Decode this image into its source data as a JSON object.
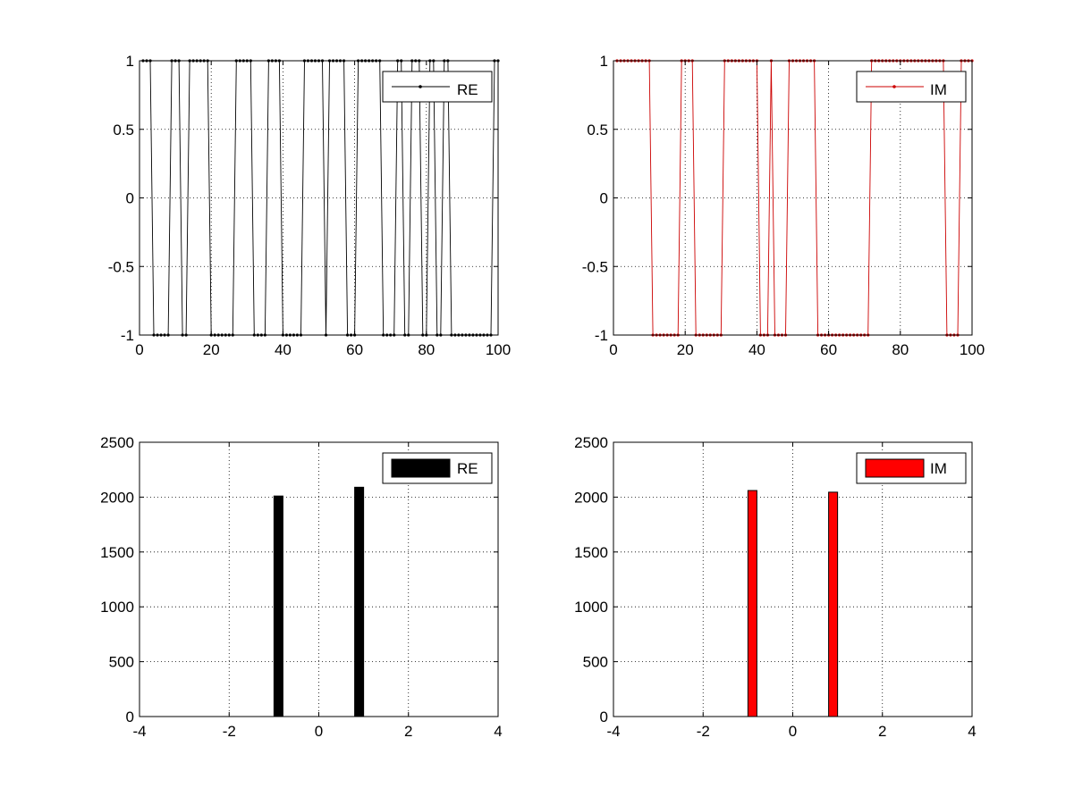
{
  "chart_data": [
    {
      "type": "line",
      "title": "",
      "xlabel": "",
      "ylabel": "",
      "xlim": [
        0,
        100
      ],
      "ylim": [
        -1,
        1
      ],
      "xticks": [
        0,
        20,
        40,
        60,
        80,
        100
      ],
      "yticks": [
        -1,
        -0.5,
        0,
        0.5,
        1
      ],
      "xtick_labels": [
        "0",
        "20",
        "40",
        "60",
        "80",
        "100"
      ],
      "ytick_labels": [
        "-1",
        "-0.5",
        "0",
        "0.5",
        "1"
      ],
      "grid": true,
      "legend": {
        "position": "top-right",
        "entries": [
          "RE"
        ]
      },
      "series": [
        {
          "name": "RE",
          "color": "#000000",
          "x": [
            1,
            2,
            3,
            4,
            5,
            6,
            7,
            8,
            9,
            10,
            11,
            12,
            13,
            14,
            15,
            16,
            17,
            18,
            19,
            20,
            21,
            22,
            23,
            24,
            25,
            26,
            27,
            28,
            29,
            30,
            31,
            32,
            33,
            34,
            35,
            36,
            37,
            38,
            39,
            40,
            41,
            42,
            43,
            44,
            45,
            46,
            47,
            48,
            49,
            50,
            51,
            52,
            53,
            54,
            55,
            56,
            57,
            58,
            59,
            60,
            61,
            62,
            63,
            64,
            65,
            66,
            67,
            68,
            69,
            70,
            71,
            72,
            73,
            74,
            75,
            76,
            77,
            78,
            79,
            80,
            81,
            82,
            83,
            84,
            85,
            86,
            87,
            88,
            89,
            90,
            91,
            92,
            93,
            94,
            95,
            96,
            97,
            98,
            99,
            100
          ],
          "y": [
            1,
            1,
            1,
            -1,
            -1,
            -1,
            -1,
            -1,
            1,
            1,
            1,
            -1,
            -1,
            1,
            1,
            1,
            1,
            1,
            1,
            -1,
            -1,
            -1,
            -1,
            -1,
            -1,
            -1,
            1,
            1,
            1,
            1,
            1,
            -1,
            -1,
            -1,
            -1,
            1,
            1,
            1,
            1,
            -1,
            -1,
            -1,
            -1,
            -1,
            -1,
            1,
            1,
            1,
            1,
            1,
            1,
            -1,
            1,
            1,
            1,
            1,
            1,
            -1,
            -1,
            -1,
            1,
            1,
            1,
            1,
            1,
            1,
            1,
            -1,
            -1,
            -1,
            -1,
            1,
            1,
            -1,
            -1,
            1,
            1,
            1,
            -1,
            -1,
            1,
            1,
            -1,
            -1,
            1,
            1,
            -1,
            -1,
            -1,
            -1,
            -1,
            -1,
            -1,
            -1,
            -1,
            -1,
            -1,
            -1,
            1,
            1
          ]
        }
      ]
    },
    {
      "type": "line",
      "title": "",
      "xlabel": "",
      "ylabel": "",
      "xlim": [
        0,
        100
      ],
      "ylim": [
        -1,
        1
      ],
      "xticks": [
        0,
        20,
        40,
        60,
        80,
        100
      ],
      "yticks": [
        -1,
        -0.5,
        0,
        0.5,
        1
      ],
      "xtick_labels": [
        "0",
        "20",
        "40",
        "60",
        "80",
        "100"
      ],
      "ytick_labels": [
        "-1",
        "-0.5",
        "0",
        "0.5",
        "1"
      ],
      "grid": true,
      "legend": {
        "position": "top-right",
        "entries": [
          "IM"
        ]
      },
      "series": [
        {
          "name": "IM",
          "color": "#cc0000",
          "x": [
            1,
            2,
            3,
            4,
            5,
            6,
            7,
            8,
            9,
            10,
            11,
            12,
            13,
            14,
            15,
            16,
            17,
            18,
            19,
            20,
            21,
            22,
            23,
            24,
            25,
            26,
            27,
            28,
            29,
            30,
            31,
            32,
            33,
            34,
            35,
            36,
            37,
            38,
            39,
            40,
            41,
            42,
            43,
            44,
            45,
            46,
            47,
            48,
            49,
            50,
            51,
            52,
            53,
            54,
            55,
            56,
            57,
            58,
            59,
            60,
            61,
            62,
            63,
            64,
            65,
            66,
            67,
            68,
            69,
            70,
            71,
            72,
            73,
            74,
            75,
            76,
            77,
            78,
            79,
            80,
            81,
            82,
            83,
            84,
            85,
            86,
            87,
            88,
            89,
            90,
            91,
            92,
            93,
            94,
            95,
            96,
            97,
            98,
            99,
            100
          ],
          "y": [
            1,
            1,
            1,
            1,
            1,
            1,
            1,
            1,
            1,
            1,
            -1,
            -1,
            -1,
            -1,
            -1,
            -1,
            -1,
            -1,
            1,
            1,
            1,
            1,
            -1,
            -1,
            -1,
            -1,
            -1,
            -1,
            -1,
            -1,
            1,
            1,
            1,
            1,
            1,
            1,
            1,
            1,
            1,
            1,
            -1,
            -1,
            -1,
            1,
            -1,
            -1,
            -1,
            -1,
            1,
            1,
            1,
            1,
            1,
            1,
            1,
            1,
            -1,
            -1,
            -1,
            -1,
            -1,
            -1,
            -1,
            -1,
            -1,
            -1,
            -1,
            -1,
            -1,
            -1,
            -1,
            1,
            1,
            1,
            1,
            1,
            1,
            1,
            1,
            1,
            1,
            1,
            1,
            1,
            1,
            1,
            1,
            1,
            1,
            1,
            1,
            1,
            -1,
            -1,
            -1,
            -1,
            1,
            1,
            1,
            1
          ]
        }
      ]
    },
    {
      "type": "bar",
      "title": "",
      "xlabel": "",
      "ylabel": "",
      "xlim": [
        -4,
        4
      ],
      "ylim": [
        0,
        2500
      ],
      "xticks": [
        -4,
        -2,
        0,
        2,
        4
      ],
      "yticks": [
        0,
        500,
        1000,
        1500,
        2000,
        2500
      ],
      "xtick_labels": [
        "-4",
        "-2",
        "0",
        "2",
        "4"
      ],
      "ytick_labels": [
        "0",
        "500",
        "1000",
        "1500",
        "2000",
        "2500"
      ],
      "grid": true,
      "bar_width": 0.2,
      "legend": {
        "position": "top-right",
        "entries": [
          "RE"
        ]
      },
      "series": [
        {
          "name": "RE",
          "color": "#000000",
          "x": [
            -0.9,
            0.9
          ],
          "values": [
            2010,
            2090
          ]
        }
      ]
    },
    {
      "type": "bar",
      "title": "",
      "xlabel": "",
      "ylabel": "",
      "xlim": [
        -4,
        4
      ],
      "ylim": [
        0,
        2500
      ],
      "xticks": [
        -4,
        -2,
        0,
        2,
        4
      ],
      "yticks": [
        0,
        500,
        1000,
        1500,
        2000,
        2500
      ],
      "xtick_labels": [
        "-4",
        "-2",
        "0",
        "2",
        "4"
      ],
      "ytick_labels": [
        "0",
        "500",
        "1000",
        "1500",
        "2000",
        "2500"
      ],
      "grid": true,
      "bar_width": 0.2,
      "legend": {
        "position": "top-right",
        "entries": [
          "IM"
        ]
      },
      "series": [
        {
          "name": "IM",
          "color": "#ff0000",
          "x": [
            -0.9,
            0.9
          ],
          "values": [
            2060,
            2045
          ]
        }
      ]
    }
  ]
}
